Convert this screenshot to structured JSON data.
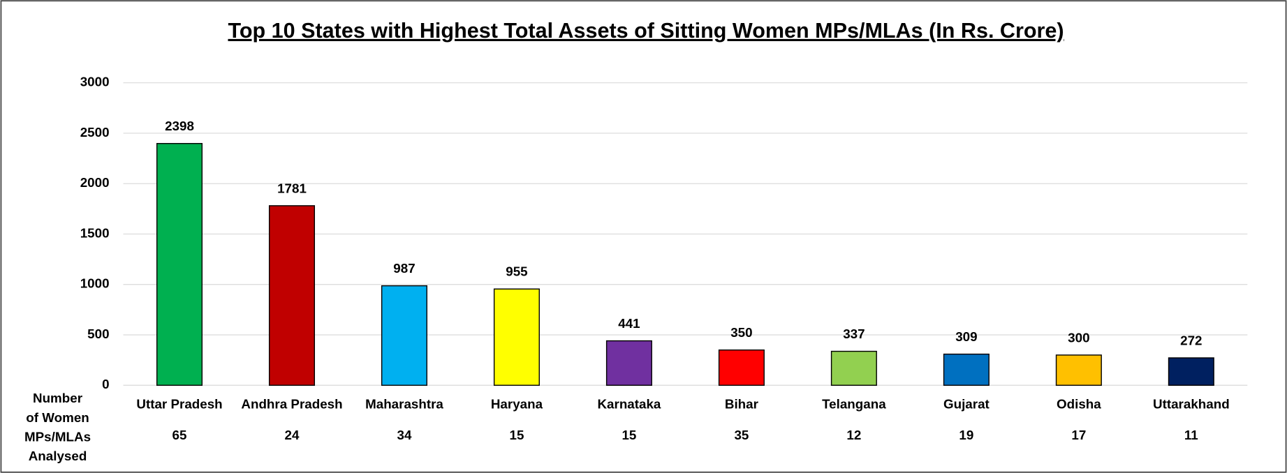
{
  "chart_data": {
    "type": "bar",
    "title": "Top 10 States with Highest Total Assets of Sitting Women MPs/MLAs (In Rs. Crore)",
    "categories": [
      "Uttar Pradesh",
      "Andhra Pradesh",
      "Maharashtra",
      "Haryana",
      "Karnataka",
      "Bihar",
      "Telangana",
      "Gujarat",
      "Odisha",
      "Uttarakhand"
    ],
    "values": [
      2398,
      1781,
      987,
      955,
      441,
      350,
      337,
      309,
      300,
      272
    ],
    "colors": [
      "#00b050",
      "#c00000",
      "#00b0f0",
      "#ffff00",
      "#7030a0",
      "#ff0000",
      "#92d050",
      "#0070c0",
      "#ffc000",
      "#002060"
    ],
    "ylim": [
      0,
      3000
    ],
    "yticks": [
      0,
      500,
      1000,
      1500,
      2000,
      2500,
      3000
    ],
    "grid": true,
    "row_label": [
      "Number",
      "of Women",
      "MPs/MLAs",
      "Analysed"
    ],
    "counts": [
      65,
      24,
      34,
      15,
      15,
      35,
      12,
      19,
      17,
      11
    ]
  }
}
